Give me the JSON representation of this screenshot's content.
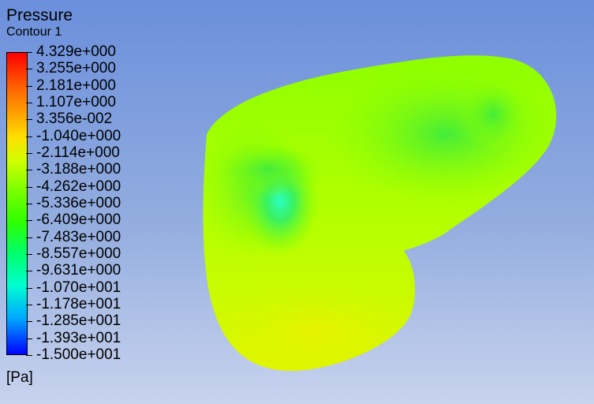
{
  "legend": {
    "title": "Pressure",
    "subtitle": "Contour 1",
    "unit": "[Pa]",
    "labels": [
      "4.329e+000",
      "3.255e+000",
      "2.181e+000",
      "1.107e+000",
      "3.356e-002",
      "-1.040e+000",
      "-2.114e+000",
      "-3.188e+000",
      "-4.262e+000",
      "-5.336e+000",
      "-6.409e+000",
      "-7.483e+000",
      "-8.557e+000",
      "-9.631e+000",
      "-1.070e+001",
      "-1.178e+001",
      "-1.285e+001",
      "-1.393e+001",
      "-1.500e+001"
    ]
  },
  "colors": {
    "background_top": "#6b8fdc",
    "background_bottom": "#c8d3ee",
    "field_dominant": "#9cff00",
    "field_low": "#00ffd0",
    "field_high": "#e8f000"
  }
}
